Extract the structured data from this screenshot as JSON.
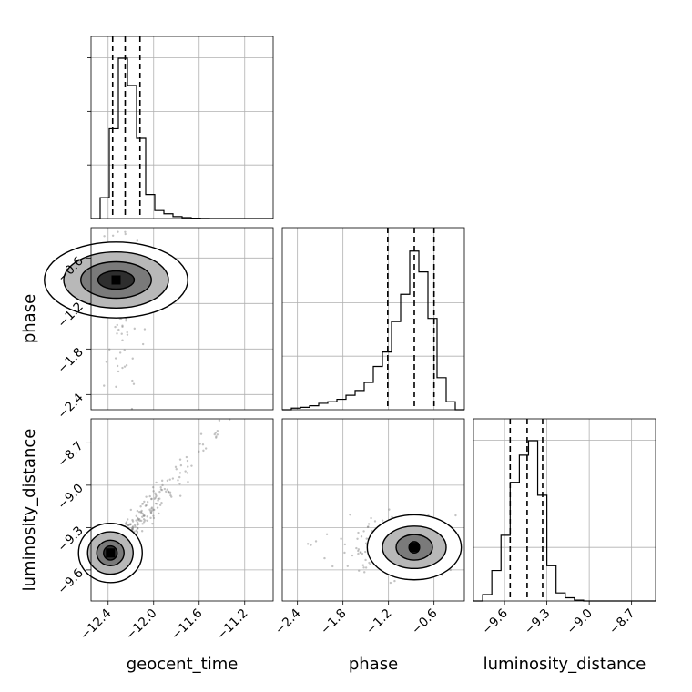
{
  "chart_data": {
    "type": "corner",
    "parameters": [
      "geocent_time",
      "phase",
      "luminosity_distance"
    ],
    "axis_titles": {
      "x": [
        "geocent_time",
        "phase",
        "luminosity_distance"
      ],
      "y": [
        "phase",
        "luminosity_distance"
      ]
    },
    "grid": true,
    "ranges": {
      "geocent_time": [
        -12.55,
        -10.95
      ],
      "phase": [
        -2.6,
        -0.2
      ],
      "luminosity_distance": [
        -9.82,
        -8.53
      ]
    },
    "ticks": {
      "geocent_time": [
        -12.4,
        -12.0,
        -11.6,
        -11.2
      ],
      "phase": [
        -2.4,
        -1.8,
        -1.2,
        -0.6
      ],
      "luminosity_distance": [
        -9.6,
        -9.3,
        -9.0,
        -8.7
      ]
    },
    "tick_labels": {
      "geocent_time": [
        "−12.4",
        "−12.0",
        "−11.6",
        "−11.2"
      ],
      "phase": [
        "−2.4",
        "−1.8",
        "−1.2",
        "−0.6"
      ],
      "luminosity_distance": [
        "−9.6",
        "−9.3",
        "−9.0",
        "−8.7"
      ]
    },
    "histograms": {
      "geocent_time": {
        "edges": [
          -12.55,
          -12.47,
          -12.39,
          -12.31,
          -12.23,
          -12.15,
          -12.07,
          -11.99,
          -11.91,
          -11.83,
          -11.75,
          -11.67,
          -11.59,
          -11.51,
          -11.43,
          -11.35,
          -11.27,
          -11.19,
          -11.11,
          -11.03,
          -10.95
        ],
        "counts": [
          0,
          0.13,
          0.56,
          1.0,
          0.83,
          0.5,
          0.15,
          0.05,
          0.03,
          0.012,
          0.006,
          0.002,
          0.001,
          0,
          0,
          0,
          0,
          0,
          0,
          0
        ],
        "quantiles": [
          -12.36,
          -12.25,
          -12.12
        ]
      },
      "phase": {
        "edges": [
          -2.6,
          -2.48,
          -2.36,
          -2.24,
          -2.12,
          -2.0,
          -1.88,
          -1.76,
          -1.64,
          -1.52,
          -1.4,
          -1.28,
          -1.16,
          -1.04,
          -0.92,
          -0.8,
          -0.68,
          -0.56,
          -0.44,
          -0.32,
          -0.2
        ],
        "counts": [
          0,
          0.01,
          0.015,
          0.025,
          0.04,
          0.05,
          0.065,
          0.09,
          0.12,
          0.17,
          0.27,
          0.36,
          0.55,
          0.72,
          0.99,
          0.86,
          0.57,
          0.2,
          0.05,
          0
        ],
        "quantiles": [
          -1.21,
          -0.86,
          -0.6
        ]
      },
      "luminosity_distance": {
        "edges": [
          -9.82,
          -9.755,
          -9.69,
          -9.625,
          -9.56,
          -9.495,
          -9.43,
          -9.365,
          -9.3,
          -9.235,
          -9.17,
          -9.105,
          -9.04,
          -8.975,
          -8.91,
          -8.845,
          -8.78,
          -8.715,
          -8.65,
          -8.585,
          -8.53
        ],
        "counts": [
          0,
          0.04,
          0.19,
          0.41,
          0.74,
          0.91,
          1.0,
          0.66,
          0.22,
          0.05,
          0.02,
          0.005,
          0,
          0,
          0,
          0,
          0,
          0,
          0,
          0
        ],
        "quantiles": [
          -9.56,
          -9.44,
          -9.33
        ]
      }
    },
    "pairs": [
      {
        "x": "geocent_time",
        "y": "phase",
        "center": [
          -12.33,
          -0.89
        ],
        "contour_levels": [
          [
            0.16,
            0.12
          ],
          [
            0.31,
            0.24
          ],
          [
            0.46,
            0.37
          ],
          [
            0.63,
            0.5
          ]
        ]
      },
      {
        "x": "geocent_time",
        "y": "luminosity_distance",
        "center": [
          -12.38,
          -9.48
        ],
        "contour_levels": [
          [
            0.06,
            0.05
          ],
          [
            0.12,
            0.09
          ],
          [
            0.2,
            0.15
          ],
          [
            0.28,
            0.21
          ]
        ]
      },
      {
        "x": "phase",
        "y": "luminosity_distance",
        "center": [
          -0.86,
          -9.44
        ],
        "contour_levels": [
          [
            0.07,
            0.04
          ],
          [
            0.24,
            0.09
          ],
          [
            0.42,
            0.15
          ],
          [
            0.62,
            0.23
          ]
        ]
      }
    ],
    "colors": {
      "line": "#000000",
      "scatter": "#7a7a7a",
      "grid": "#b0b0b0"
    }
  }
}
